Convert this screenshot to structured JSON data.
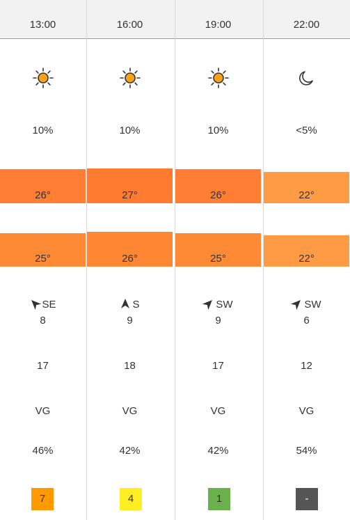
{
  "columns": [
    {
      "time": "13:00",
      "icon": "sun-icon",
      "precip": "10%",
      "temp_actual": "26°",
      "temp_actual_color": "#ff7e33",
      "temp_feels": "25°",
      "temp_feels_color": "#ff8a35",
      "wind_dir": "SE",
      "wind_speed": "8",
      "gust": "17",
      "visibility": "VG",
      "humidity": "46%",
      "uv": "7",
      "uv_color": "#ff9900",
      "uv_text_color": "#333333"
    },
    {
      "time": "16:00",
      "icon": "sun-icon",
      "precip": "10%",
      "temp_actual": "27°",
      "temp_actual_color": "#ff7b30",
      "temp_feels": "26°",
      "temp_feels_color": "#ff8633",
      "wind_dir": "S",
      "wind_speed": "9",
      "gust": "18",
      "visibility": "VG",
      "humidity": "42%",
      "uv": "4",
      "uv_color": "#ffee22",
      "uv_text_color": "#333333"
    },
    {
      "time": "19:00",
      "icon": "sun-icon",
      "precip": "10%",
      "temp_actual": "26°",
      "temp_actual_color": "#ff7e33",
      "temp_feels": "25°",
      "temp_feels_color": "#ff8a35",
      "wind_dir": "SW",
      "wind_speed": "9",
      "gust": "17",
      "visibility": "VG",
      "humidity": "42%",
      "uv": "1",
      "uv_color": "#6ab04c",
      "uv_text_color": "#333333"
    },
    {
      "time": "22:00",
      "icon": "moon-icon",
      "precip": "<5%",
      "temp_actual": "22°",
      "temp_actual_color": "#ff9a45",
      "temp_feels": "22°",
      "temp_feels_color": "#ff9a45",
      "wind_dir": "SW",
      "wind_speed": "6",
      "gust": "12",
      "visibility": "VG",
      "humidity": "54%",
      "uv": "-",
      "uv_color": "#555555",
      "uv_text_color": "#ffffff"
    }
  ]
}
